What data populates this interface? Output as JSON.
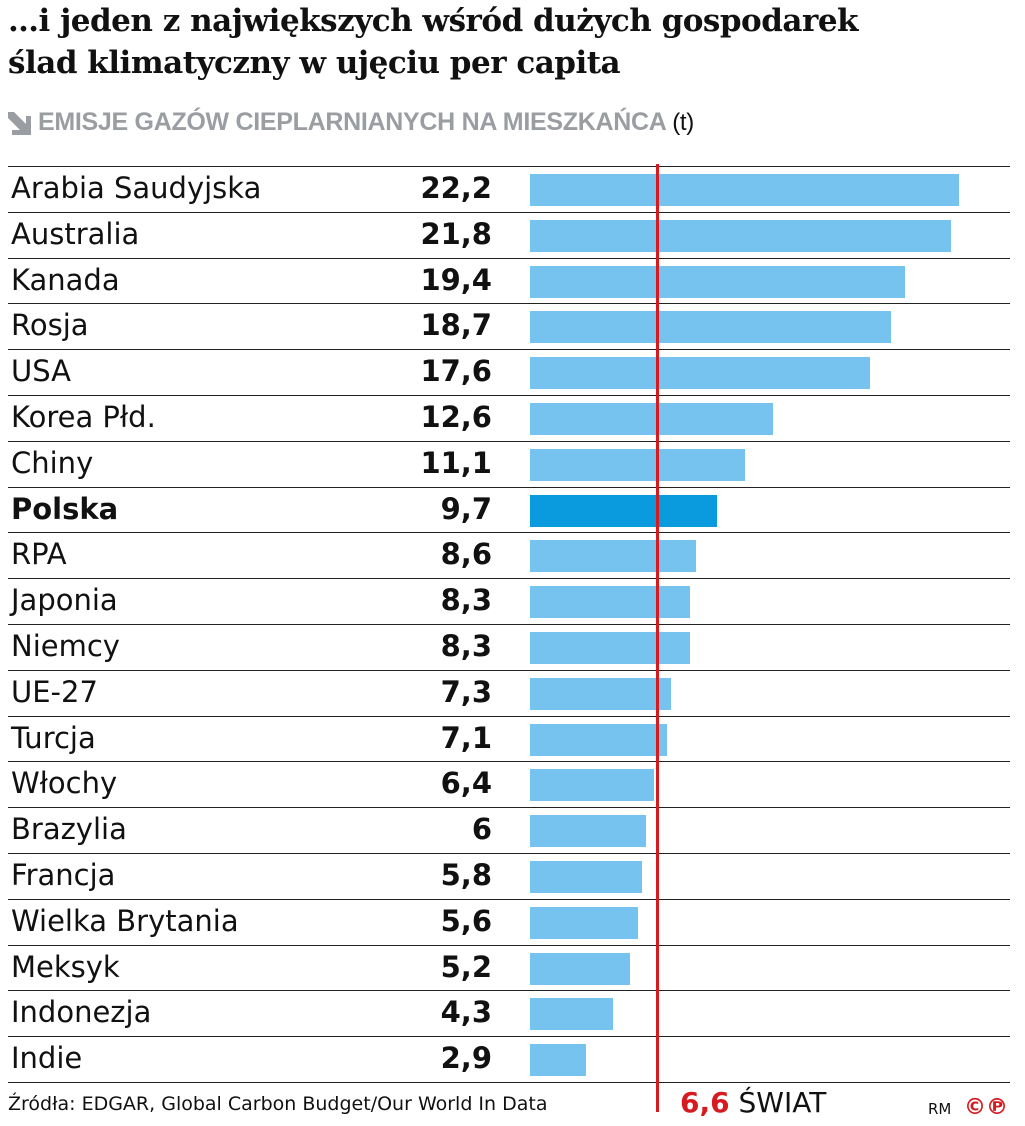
{
  "title_lines": [
    "…i jeden z największych wśród dużych gospodarek",
    "ślad klimatyczny w ujęciu per capita"
  ],
  "subtitle": "EMISJE GAZÓW CIEPLARNIANYCH NA MIESZKAŃCA",
  "unit": "(t)",
  "source": "Źródła: EDGAR, Global Carbon Budget/Our World In Data",
  "world_value": "6,6",
  "world_label": "ŚWIAT",
  "credit": "RM",
  "copyright_marks": "©℗",
  "colors": {
    "bar": "#75c3ee",
    "highlight": "#0a9ade",
    "reference": "#d71920",
    "subtitle": "#9a9ea2"
  },
  "chart_data": {
    "type": "bar",
    "orientation": "horizontal",
    "title": "EMISJE GAZÓW CIEPLARNIANYCH NA MIESZKAŃCA",
    "unit": "t",
    "categories": [
      "Arabia Saudyjska",
      "Australia",
      "Kanada",
      "Rosja",
      "USA",
      "Korea Płd.",
      "Chiny",
      "Polska",
      "RPA",
      "Japonia",
      "Niemcy",
      "UE-27",
      "Turcja",
      "Włochy",
      "Brazylia",
      "Francja",
      "Wielka Brytania",
      "Meksyk",
      "Indonezja",
      "Indie"
    ],
    "values": [
      22.2,
      21.8,
      19.4,
      18.7,
      17.6,
      12.6,
      11.1,
      9.7,
      8.6,
      8.3,
      8.3,
      7.3,
      7.1,
      6.4,
      6,
      5.8,
      5.6,
      5.2,
      4.3,
      2.9
    ],
    "labels": [
      "22,2",
      "21,8",
      "19,4",
      "18,7",
      "17,6",
      "12,6",
      "11,1",
      "9,7",
      "8,6",
      "8,3",
      "8,3",
      "7,3",
      "7,1",
      "6,4",
      "6",
      "5,8",
      "5,6",
      "5,2",
      "4,3",
      "2,9"
    ],
    "highlight": "Polska",
    "reference_line": {
      "value": 6.6,
      "label": "ŚWIAT"
    },
    "xlim": [
      0,
      22.2
    ]
  }
}
